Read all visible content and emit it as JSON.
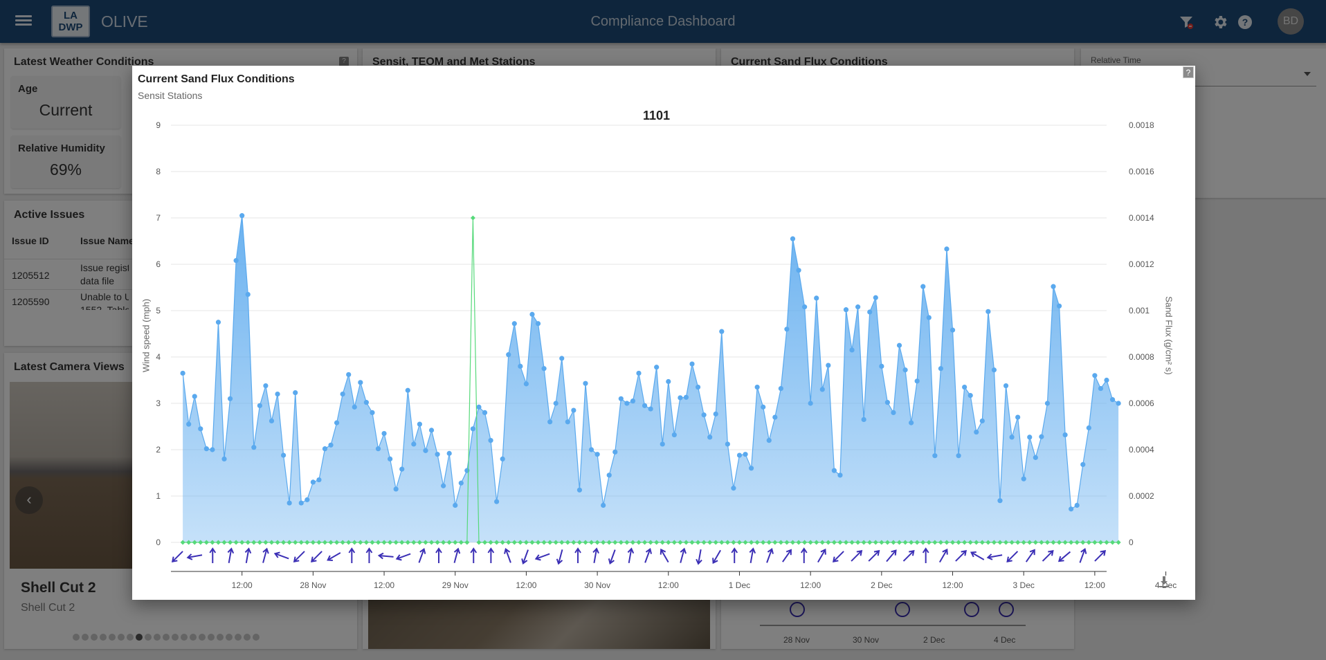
{
  "header": {
    "app_name": "OLIVE",
    "logo_line1": "LA",
    "logo_line2": "DWP",
    "title": "Compliance Dashboard",
    "avatar_initials": "BD"
  },
  "weather": {
    "title": "Latest Weather Conditions",
    "age_label": "Age",
    "age_value": "Current",
    "humidity_label": "Relative Humidity",
    "humidity_value": "69%"
  },
  "stations_card": {
    "title": "Sensit, TEOM and Met Stations"
  },
  "flux_card": {
    "title": "Current Sand Flux Conditions",
    "x_ticks": [
      "28 Nov",
      "30 Nov",
      "2 Dec",
      "4 Dec"
    ]
  },
  "relative_time": {
    "label": "Relative Time"
  },
  "issues": {
    "title": "Active Issues",
    "col_id": "Issue ID",
    "col_name": "Issue Name",
    "rows": [
      {
        "id": "1205512",
        "name_line1": "Issue regist",
        "name_line2": "data file"
      },
      {
        "id": "1205590",
        "name_line1": "Unable to U",
        "name_line2": "1552, Table"
      }
    ]
  },
  "camera": {
    "title": "Latest Camera Views",
    "view_name": "Shell Cut 2",
    "view_sub": "Shell Cut 2",
    "total_views": 21,
    "active_view": 7
  },
  "dialog": {
    "title": "Current Sand Flux Conditions",
    "subtitle": "Sensit Stations",
    "help": "?"
  },
  "chart_data": {
    "type": "area",
    "title": "1101",
    "ylabel": "Wind speed (mph)",
    "y2label": "Sand Flux (g/cm² s)",
    "ylim": [
      0,
      9
    ],
    "y_ticks": [
      0,
      1,
      2,
      3,
      4,
      5,
      6,
      7,
      8,
      9
    ],
    "y2lim": [
      0,
      0.0018
    ],
    "y2_ticks": [
      "0",
      "0.0002",
      "0.0004",
      "0.0006",
      "0.0008",
      "0.001",
      "0.0012",
      "0.0014",
      "0.0016",
      "0.0018"
    ],
    "x_ticks": [
      "12:00",
      "28 Nov",
      "12:00",
      "29 Nov",
      "12:00",
      "30 Nov",
      "12:00",
      "1 Dec",
      "12:00",
      "2 Dec",
      "12:00",
      "3 Dec",
      "12:00",
      "4 Dec"
    ],
    "x_range_hours": [
      0,
      158
    ],
    "interval_hours": 1,
    "series": [
      {
        "name": "Wind speed",
        "axis": "left",
        "color": "#5aa9ee",
        "values": [
          3.65,
          2.55,
          3.15,
          2.45,
          2.02,
          2.0,
          4.75,
          1.8,
          3.1,
          6.08,
          7.05,
          5.35,
          2.05,
          2.95,
          3.38,
          2.62,
          3.2,
          1.88,
          0.85,
          3.23,
          0.85,
          0.92,
          1.3,
          1.35,
          2.02,
          2.1,
          2.58,
          3.2,
          3.62,
          2.92,
          3.45,
          3.02,
          2.8,
          2.02,
          2.35,
          1.8,
          1.15,
          1.58,
          3.28,
          2.12,
          2.55,
          1.98,
          2.42,
          1.9,
          1.22,
          1.92,
          0.8,
          1.28,
          1.55,
          2.45,
          2.92,
          2.8,
          2.2,
          0.88,
          1.8,
          4.05,
          4.72,
          3.8,
          3.42,
          4.92,
          4.72,
          3.75,
          2.6,
          3.0,
          3.97,
          2.6,
          2.85,
          1.13,
          3.43,
          2.0,
          1.9,
          0.8,
          1.45,
          1.95,
          3.1,
          3.0,
          3.05,
          3.65,
          2.95,
          2.88,
          3.78,
          2.12,
          3.47,
          2.32,
          3.12,
          3.13,
          3.85,
          3.35,
          2.75,
          2.27,
          2.77,
          4.55,
          2.12,
          1.17,
          1.88,
          1.9,
          1.6,
          3.35,
          2.92,
          2.2,
          2.7,
          3.32,
          4.6,
          6.55,
          5.87,
          5.08,
          3.0,
          5.27,
          3.3,
          3.82,
          1.55,
          1.45,
          5.02,
          4.15,
          5.08,
          2.65,
          4.97,
          5.28,
          3.8,
          3.02,
          2.8,
          4.25,
          3.72,
          2.58,
          3.48,
          5.52,
          4.85,
          1.87,
          3.75,
          6.33,
          4.58,
          1.87,
          3.35,
          3.17,
          2.38,
          2.62,
          4.98,
          3.72,
          0.9,
          3.38,
          2.27,
          2.7,
          1.37,
          2.27,
          1.83,
          2.28,
          3.0,
          5.52,
          5.1,
          2.32,
          0.72,
          0.8,
          1.68,
          2.47,
          3.6,
          3.32,
          3.5,
          3.08,
          3.0
        ]
      },
      {
        "name": "Sand Flux",
        "axis": "right",
        "color": "#56d97a",
        "values": [
          0,
          0,
          0,
          0,
          0,
          0,
          0,
          0,
          0,
          0,
          0,
          0,
          0,
          0,
          0,
          0,
          0,
          0,
          0,
          0,
          0,
          0,
          0,
          0,
          0,
          0,
          0,
          0,
          0,
          0,
          0,
          0,
          0,
          0,
          0,
          0,
          0,
          0,
          0,
          0,
          0,
          0,
          0,
          0,
          0,
          0,
          0,
          0,
          0,
          0.0014,
          0,
          0,
          0,
          0,
          0,
          0,
          0,
          0,
          0,
          0,
          0,
          0,
          0,
          0,
          0,
          0,
          0,
          0,
          0,
          0,
          0,
          0,
          0,
          0,
          0,
          0,
          0,
          0,
          0,
          0,
          0,
          0,
          0,
          0,
          0,
          0,
          0,
          0,
          0,
          0,
          0,
          0,
          0,
          0,
          0,
          0,
          0,
          0,
          0,
          0,
          0,
          0,
          0,
          0,
          0,
          0,
          0,
          0,
          0,
          0,
          0,
          0,
          0,
          0,
          0,
          0,
          0,
          0,
          0,
          0,
          0,
          0,
          0,
          0,
          0,
          0,
          0,
          0,
          0,
          0,
          0,
          0,
          0,
          0,
          0,
          0,
          0,
          0,
          0,
          0,
          0,
          0,
          0,
          0,
          0,
          0,
          0,
          0,
          0,
          0,
          0,
          0,
          0,
          0,
          0,
          0,
          0,
          0,
          0
        ]
      }
    ],
    "wind_direction_deg": [
      225,
      260,
      0,
      10,
      10,
      15,
      290,
      225,
      225,
      240,
      0,
      0,
      275,
      250,
      20,
      0,
      15,
      0,
      0,
      340,
      200,
      250,
      195,
      0,
      10,
      200,
      10,
      20,
      330,
      15,
      190,
      210,
      0,
      10,
      20,
      35,
      0,
      30,
      225,
      45,
      45,
      40,
      45,
      0,
      30,
      45,
      300,
      260,
      225,
      35,
      45,
      230,
      20,
      45
    ],
    "arrow_color": "#3b2fb5",
    "legend": "none",
    "grid": true
  }
}
